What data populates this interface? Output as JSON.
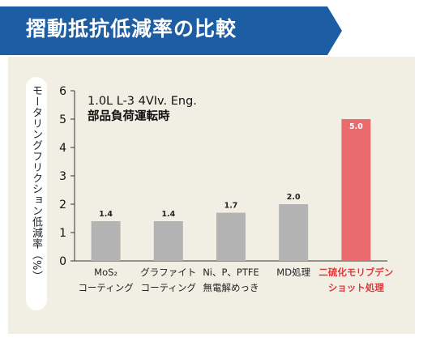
{
  "header": {
    "title": "摺動抵抗低減率の比較",
    "color": "#1d5da3"
  },
  "chart_data": {
    "type": "bar",
    "ylabel": "モータリングフリクション低減率（%）",
    "ylim": [
      0,
      6
    ],
    "yticks": [
      "0",
      "1",
      "2",
      "3",
      "4",
      "5",
      "6"
    ],
    "annotation": [
      "1.0L L-3 4VIv. Eng.",
      "部品負荷運転時"
    ],
    "categories": [
      [
        "MoS₂",
        "コーティング"
      ],
      [
        "グラファイト",
        "コーティング"
      ],
      [
        "Ni、P、PTFE",
        "無電解めっき"
      ],
      [
        "MD処理"
      ],
      [
        "二硫化モリブデン",
        "ショット処理"
      ]
    ],
    "values": [
      1.4,
      1.4,
      1.7,
      2.0,
      5.0
    ],
    "value_labels": [
      "1.4",
      "1.4",
      "1.7",
      "2.0",
      "5.0"
    ],
    "bar_colors": [
      "#b3b3b3",
      "#b3b3b3",
      "#b3b3b3",
      "#b3b3b3",
      "#ea6b6e"
    ],
    "highlight_label_color": "#e0393e",
    "grid": false
  }
}
